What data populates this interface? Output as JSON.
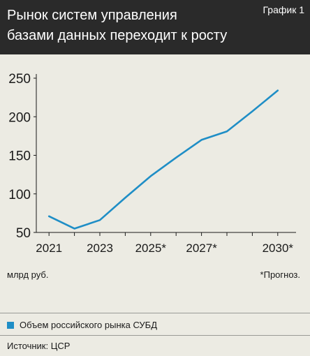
{
  "header": {
    "title_line1": "Рынок систем управления",
    "title_line2": "базами данных переходит к росту",
    "badge": "График 1"
  },
  "footer": {
    "unit": "млрд руб.",
    "note": "*Прогноз.",
    "legend_label": "Объем российского рынка СУБД",
    "source": "Источник: ЦСР"
  },
  "colors": {
    "line": "#1f8ec6",
    "header_bg": "#2a2a2a",
    "background": "#ecebe3"
  },
  "chart_data": {
    "type": "line",
    "x": [
      2021,
      2022,
      2023,
      2024,
      2025,
      2026,
      2027,
      2028,
      2029,
      2030
    ],
    "x_tick_labels": [
      {
        "x": 2021,
        "label": "2021"
      },
      {
        "x": 2023,
        "label": "2023"
      },
      {
        "x": 2025,
        "label": "2025*"
      },
      {
        "x": 2027,
        "label": "2027*"
      },
      {
        "x": 2030,
        "label": "2030*"
      }
    ],
    "series": [
      {
        "name": "Объем российского рынка СУБД",
        "values": [
          71,
          55,
          66,
          95,
          123,
          147,
          170,
          181,
          207,
          234
        ]
      }
    ],
    "y_ticks": [
      50,
      100,
      150,
      200,
      250
    ],
    "ylim": [
      50,
      250
    ],
    "xlim": [
      2020.5,
      2030.5
    ],
    "grid": false
  }
}
